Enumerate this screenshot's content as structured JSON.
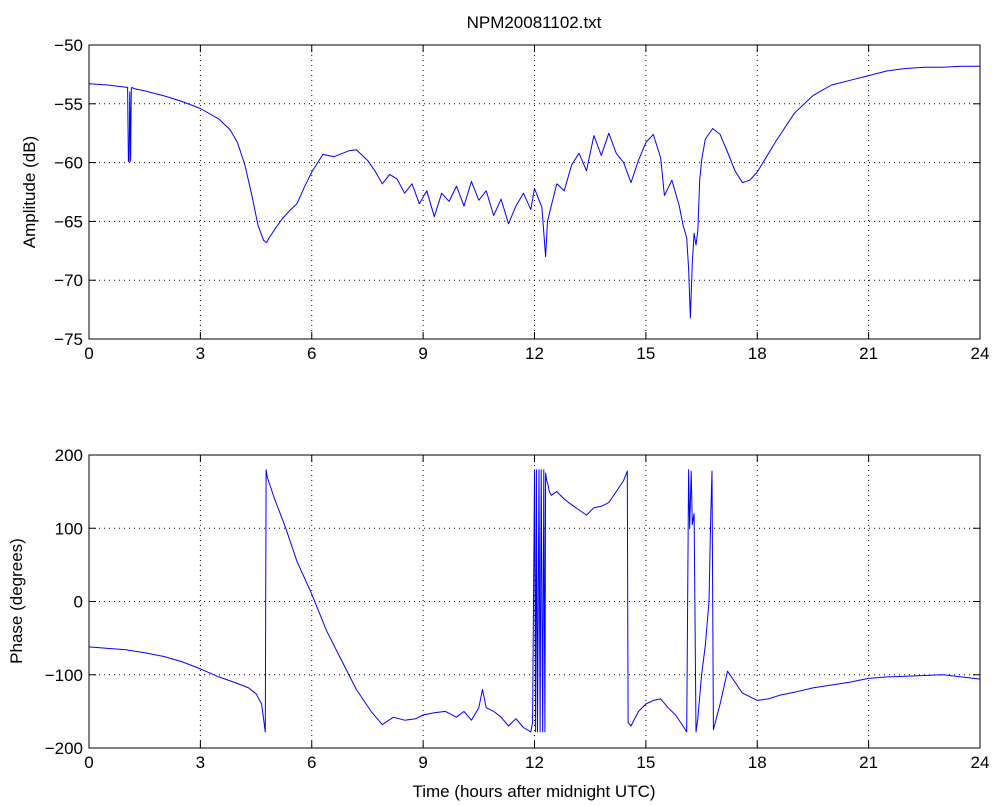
{
  "figure": {
    "title": "NPM20081102.txt"
  },
  "chart_data": [
    {
      "type": "line",
      "title": "NPM20081102.txt",
      "xlabel": "",
      "ylabel": "Amplitude (dB)",
      "xlim": [
        0,
        24
      ],
      "ylim": [
        -75,
        -50
      ],
      "xticks": [
        0,
        3,
        6,
        9,
        12,
        15,
        18,
        21,
        24
      ],
      "yticks": [
        -75,
        -70,
        -65,
        -60,
        -55,
        -50
      ],
      "grid": true,
      "color": "#0000ff",
      "series": [
        {
          "x": [
            0,
            0.5,
            1.0,
            1.04,
            1.06,
            1.08,
            1.1,
            1.12,
            1.14,
            1.16,
            1.2,
            1.5,
            2.0,
            2.5,
            3.0,
            3.5,
            3.8,
            4.0,
            4.2,
            4.4,
            4.55,
            4.7,
            4.78,
            4.85,
            5.0,
            5.2,
            5.4,
            5.6,
            5.8,
            6.0,
            6.3,
            6.6,
            7.0,
            7.2,
            7.5,
            7.7,
            7.9,
            8.1,
            8.3,
            8.5,
            8.7,
            8.9,
            9.1,
            9.3,
            9.5,
            9.7,
            9.9,
            10.1,
            10.3,
            10.5,
            10.7,
            10.9,
            11.1,
            11.3,
            11.5,
            11.7,
            11.9,
            12.0,
            12.1,
            12.2,
            12.3,
            12.35,
            12.45,
            12.6,
            12.8,
            13.0,
            13.2,
            13.4,
            13.6,
            13.8,
            14.0,
            14.2,
            14.4,
            14.6,
            14.8,
            15.0,
            15.2,
            15.4,
            15.5,
            15.7,
            15.9,
            16.0,
            16.1,
            16.15,
            16.2,
            16.25,
            16.3,
            16.35,
            16.4,
            16.45,
            16.5,
            16.6,
            16.8,
            17.0,
            17.2,
            17.4,
            17.6,
            17.8,
            18.0,
            18.5,
            19.0,
            19.5,
            20.0,
            20.5,
            21.0,
            21.5,
            22.0,
            22.5,
            23.0,
            23.5,
            24.0
          ],
          "values": [
            -53.3,
            -53.4,
            -53.6,
            -53.6,
            -59.9,
            -59.9,
            -54.0,
            -59.9,
            -53.7,
            -53.6,
            -53.7,
            -53.9,
            -54.3,
            -54.8,
            -55.4,
            -56.3,
            -57.2,
            -58.3,
            -60.2,
            -63.0,
            -65.3,
            -66.6,
            -66.8,
            -66.4,
            -65.7,
            -64.8,
            -64.1,
            -63.5,
            -62.1,
            -60.8,
            -59.3,
            -59.5,
            -59.0,
            -58.9,
            -59.8,
            -60.7,
            -61.8,
            -61.0,
            -61.4,
            -62.6,
            -61.8,
            -63.5,
            -62.4,
            -64.6,
            -62.6,
            -63.3,
            -62.0,
            -63.7,
            -61.6,
            -63.2,
            -62.4,
            -64.5,
            -63.1,
            -65.2,
            -63.7,
            -62.6,
            -64.0,
            -62.2,
            -63.0,
            -63.8,
            -68.0,
            -65.0,
            -63.7,
            -61.8,
            -62.4,
            -60.2,
            -59.2,
            -60.7,
            -57.7,
            -59.4,
            -57.5,
            -59.2,
            -60.0,
            -61.7,
            -59.8,
            -58.3,
            -57.6,
            -59.6,
            -62.8,
            -61.5,
            -63.7,
            -65.3,
            -66.4,
            -69.0,
            -73.2,
            -68.5,
            -66.0,
            -67.0,
            -65.8,
            -61.5,
            -59.8,
            -58.0,
            -57.1,
            -57.6,
            -59.1,
            -60.7,
            -61.7,
            -61.5,
            -60.8,
            -58.2,
            -55.8,
            -54.3,
            -53.4,
            -53.0,
            -52.6,
            -52.2,
            -52.0,
            -51.9,
            -51.9,
            -51.8,
            -51.8
          ]
        }
      ]
    },
    {
      "type": "line",
      "title": "",
      "xlabel": "Time (hours after midnight UTC)",
      "ylabel": "Phase (degrees)",
      "xlim": [
        0,
        24
      ],
      "ylim": [
        -200,
        200
      ],
      "xticks": [
        0,
        3,
        6,
        9,
        12,
        15,
        18,
        21,
        24
      ],
      "yticks": [
        -200,
        -100,
        0,
        100,
        200
      ],
      "grid": true,
      "color": "#0000ff",
      "series": [
        {
          "x": [
            0,
            0.5,
            1.0,
            1.5,
            2.0,
            2.5,
            3.0,
            3.5,
            4.0,
            4.3,
            4.5,
            4.65,
            4.75,
            4.77,
            4.8,
            5.0,
            5.3,
            5.6,
            6.0,
            6.4,
            6.8,
            7.2,
            7.6,
            7.9,
            8.2,
            8.5,
            8.8,
            9.0,
            9.3,
            9.6,
            9.9,
            10.1,
            10.3,
            10.5,
            10.6,
            10.7,
            10.9,
            11.1,
            11.3,
            11.5,
            11.7,
            11.9,
            11.95,
            12.0,
            12.03,
            12.05,
            12.08,
            12.12,
            12.15,
            12.18,
            12.22,
            12.25,
            12.28,
            12.3,
            12.33,
            12.36,
            12.4,
            12.45,
            12.6,
            12.8,
            13.0,
            13.2,
            13.4,
            13.6,
            13.8,
            14.0,
            14.2,
            14.4,
            14.5,
            14.52,
            14.6,
            14.8,
            15.0,
            15.2,
            15.4,
            15.6,
            15.8,
            16.0,
            16.1,
            16.15,
            16.18,
            16.22,
            16.25,
            16.3,
            16.35,
            16.4,
            16.5,
            16.6,
            16.7,
            16.75,
            16.78,
            16.82,
            17.0,
            17.2,
            17.4,
            17.6,
            17.8,
            18.0,
            18.3,
            18.6,
            19.0,
            19.5,
            20.0,
            20.5,
            21.0,
            21.5,
            22.0,
            22.5,
            23.0,
            23.5,
            24.0
          ],
          "values": [
            -62,
            -64,
            -66,
            -70,
            -75,
            -82,
            -92,
            -103,
            -112,
            -118,
            -126,
            -140,
            -178,
            180,
            170,
            140,
            100,
            55,
            10,
            -40,
            -80,
            -120,
            -150,
            -168,
            -158,
            -162,
            -160,
            -155,
            -152,
            -150,
            -158,
            -150,
            -162,
            -145,
            -120,
            -145,
            -150,
            -158,
            -170,
            -160,
            -172,
            -178,
            -165,
            180,
            -178,
            180,
            -178,
            180,
            -178,
            180,
            -178,
            180,
            -178,
            175,
            165,
            160,
            150,
            145,
            150,
            140,
            132,
            125,
            118,
            128,
            130,
            135,
            150,
            165,
            178,
            -165,
            -170,
            -150,
            -140,
            -135,
            -133,
            -145,
            -155,
            -170,
            -178,
            180,
            100,
            178,
            105,
            120,
            -178,
            -160,
            -100,
            -60,
            0,
            120,
            178,
            -175,
            -140,
            -95,
            -110,
            -125,
            -130,
            -135,
            -133,
            -128,
            -124,
            -118,
            -114,
            -110,
            -105,
            -103,
            -102,
            -101,
            -100,
            -103,
            -106
          ]
        }
      ]
    }
  ]
}
